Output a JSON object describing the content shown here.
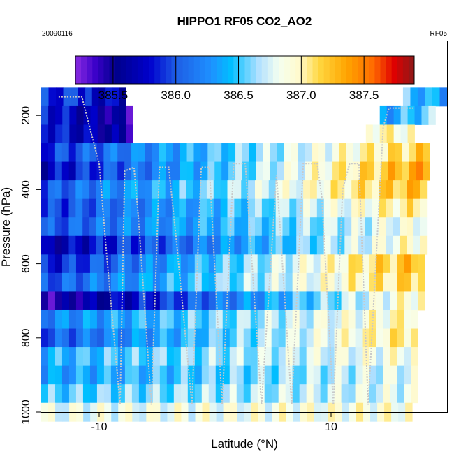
{
  "chart_data": {
    "type": "heatmap",
    "title": "HIPPO1 RF05 CO2_AO2",
    "date_label": "20090116",
    "flight_label": "RF05",
    "xlabel": "Latitude (°N)",
    "ylabel": "Pressure (hPa)",
    "xlim": [
      -15,
      20
    ],
    "ylim": [
      1000,
      0
    ],
    "x_ticks": [
      -10,
      10
    ],
    "x_tick_labels": [
      "-10",
      "10"
    ],
    "y_ticks": [
      200,
      400,
      600,
      800,
      1000
    ],
    "y_tick_labels": [
      "200",
      "400",
      "600",
      "800",
      "1000"
    ],
    "colorbar": {
      "min": 385.2,
      "max": 387.9,
      "ticks": [
        385.5,
        386.0,
        386.5,
        387.0,
        387.5
      ],
      "tick_labels": [
        "385.5",
        "386.0",
        "386.5",
        "387.0",
        "387.5"
      ],
      "stops": [
        [
          0.0,
          "#8a2be2"
        ],
        [
          0.06,
          "#3a00c8"
        ],
        [
          0.12,
          "#00008b"
        ],
        [
          0.22,
          "#0000cd"
        ],
        [
          0.3,
          "#1e5fe6"
        ],
        [
          0.4,
          "#1e90ff"
        ],
        [
          0.46,
          "#00bfff"
        ],
        [
          0.54,
          "#b0e0ff"
        ],
        [
          0.6,
          "#f5fff0"
        ],
        [
          0.66,
          "#fffacd"
        ],
        [
          0.72,
          "#ffd740"
        ],
        [
          0.8,
          "#ffa500"
        ],
        [
          0.88,
          "#ff6a00"
        ],
        [
          0.94,
          "#e00000"
        ],
        [
          1.0,
          "#8b1a1a"
        ]
      ]
    },
    "grid": false,
    "pressure_levels": [
      150,
      200,
      250,
      300,
      350,
      400,
      450,
      500,
      550,
      600,
      650,
      700,
      750,
      800,
      850,
      900,
      950,
      1000
    ],
    "rows": [
      {
        "p": 150,
        "x0": -15,
        "x1": -11.2,
        "v0": 385.9,
        "v1": 385.9
      },
      {
        "p": 150,
        "x0": -11.2,
        "x1": -7.7,
        "v0": 385.8,
        "v1": 385.7
      },
      {
        "p": 150,
        "x0": 16.2,
        "x1": 20,
        "v0": 386.5,
        "v1": 386.3
      },
      {
        "p": 200,
        "x0": -15,
        "x1": -7.1,
        "v0": 385.9,
        "v1": 385.4
      },
      {
        "p": 200,
        "x0": 14.2,
        "x1": 19,
        "v0": 386.3,
        "v1": 386.6
      },
      {
        "p": 250,
        "x0": -15,
        "x1": -7.1,
        "v0": 385.9,
        "v1": 385.5
      },
      {
        "p": 250,
        "x0": 13.0,
        "x1": 17.2,
        "v0": 387.0,
        "v1": 386.9
      },
      {
        "p": 300,
        "x0": -15,
        "x1": 18.5,
        "v0": 385.9,
        "v1": 387.2
      },
      {
        "p": 350,
        "x0": -15,
        "x1": 18.5,
        "v0": 385.7,
        "v1": 387.4
      },
      {
        "p": 400,
        "x0": -15,
        "x1": 18.3,
        "v0": 386.0,
        "v1": 387.3
      },
      {
        "p": 450,
        "x0": -15,
        "x1": 18.3,
        "v0": 385.9,
        "v1": 387.1
      },
      {
        "p": 500,
        "x0": -15,
        "x1": 18.3,
        "v0": 386.0,
        "v1": 386.9
      },
      {
        "p": 550,
        "x0": -15,
        "x1": 18.3,
        "v0": 385.6,
        "v1": 387.0
      },
      {
        "p": 600,
        "x0": -15,
        "x1": 18.1,
        "v0": 385.8,
        "v1": 387.3
      },
      {
        "p": 650,
        "x0": -15,
        "x1": 18.1,
        "v0": 386.0,
        "v1": 387.2
      },
      {
        "p": 700,
        "x0": -15,
        "x1": 18.1,
        "v0": 385.4,
        "v1": 387.0
      },
      {
        "p": 750,
        "x0": -15,
        "x1": 17.5,
        "v0": 386.2,
        "v1": 387.0
      },
      {
        "p": 800,
        "x0": -15,
        "x1": 17.5,
        "v0": 386.0,
        "v1": 387.1
      },
      {
        "p": 850,
        "x0": -15,
        "x1": 17.5,
        "v0": 386.4,
        "v1": 386.9
      },
      {
        "p": 900,
        "x0": -15,
        "x1": 17.5,
        "v0": 386.3,
        "v1": 386.8
      },
      {
        "p": 950,
        "x0": -15,
        "x1": 17.5,
        "v0": 386.5,
        "v1": 386.8
      },
      {
        "p": 1000,
        "x0": -15,
        "x1": 17.0,
        "v0": 386.8,
        "v1": 386.9
      }
    ],
    "flight_track": [
      [
        -13.5,
        150
      ],
      [
        -11.5,
        150
      ],
      [
        -10.0,
        330
      ],
      [
        -9.4,
        560
      ],
      [
        -8.2,
        980
      ],
      [
        -7.8,
        350
      ],
      [
        -7.0,
        340
      ],
      [
        -6.6,
        480
      ],
      [
        -5.5,
        980
      ],
      [
        -4.8,
        340
      ],
      [
        -4.0,
        340
      ],
      [
        -3.3,
        550
      ],
      [
        -2.0,
        980
      ],
      [
        -1.2,
        340
      ],
      [
        -0.5,
        340
      ],
      [
        0.6,
        980
      ],
      [
        1.6,
        330
      ],
      [
        2.6,
        330
      ],
      [
        4.0,
        980
      ],
      [
        5.3,
        360
      ],
      [
        6.6,
        980
      ],
      [
        7.6,
        330
      ],
      [
        8.8,
        330
      ],
      [
        9.2,
        420
      ],
      [
        10.2,
        980
      ],
      [
        11.0,
        400
      ],
      [
        11.6,
        330
      ],
      [
        12.4,
        330
      ],
      [
        13.2,
        980
      ],
      [
        14.5,
        230
      ],
      [
        15.0,
        180
      ],
      [
        17.2,
        180
      ]
    ]
  }
}
